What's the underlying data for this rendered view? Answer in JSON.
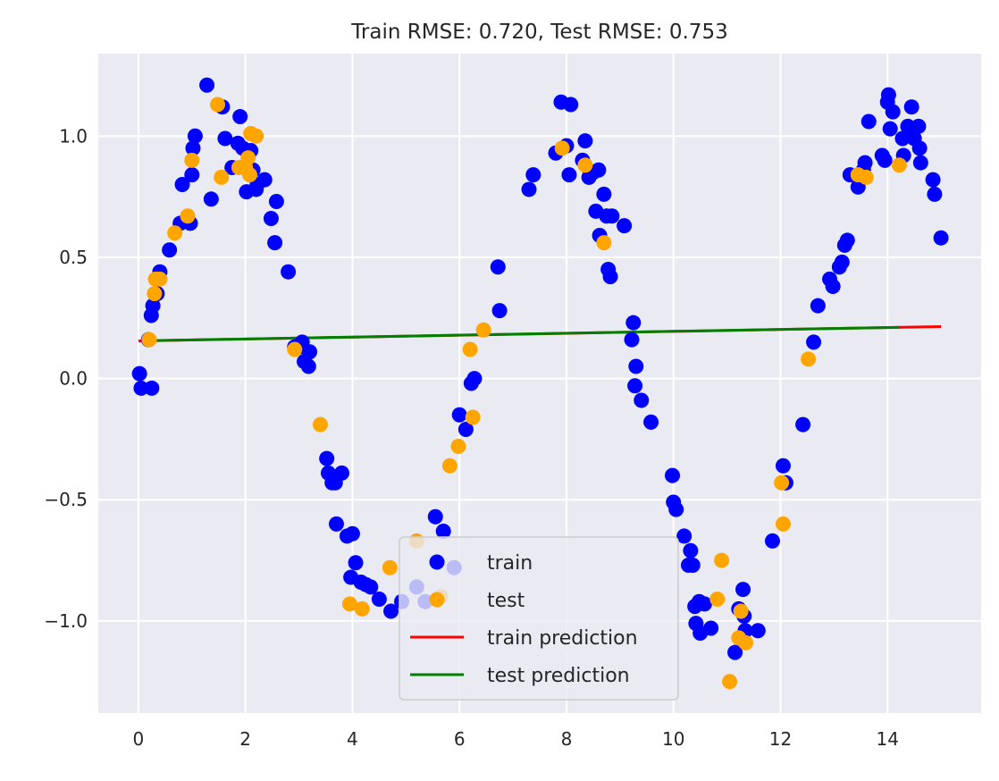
{
  "chart_data": {
    "type": "scatter",
    "title": "Train RMSE: 0.720, Test RMSE: 0.753",
    "xlabel": "",
    "ylabel": "",
    "xlim": [
      -0.75,
      15.75
    ],
    "ylim": [
      -1.38,
      1.34
    ],
    "xticks": [
      0,
      2,
      4,
      6,
      8,
      10,
      12,
      14
    ],
    "xtick_labels": [
      "0",
      "2",
      "4",
      "6",
      "8",
      "10",
      "12",
      "14"
    ],
    "yticks": [
      -1.0,
      -0.5,
      0.0,
      0.5,
      1.0
    ],
    "ytick_labels": [
      "−1.0",
      "−0.5",
      "0.0",
      "0.5",
      "1.0"
    ],
    "grid": true,
    "background": "#eaeaf2",
    "legend_position": "lower center",
    "series": [
      {
        "name": "train",
        "kind": "scatter",
        "color": "#0000ff",
        "points": [
          [
            0.02,
            0.02
          ],
          [
            0.05,
            -0.04
          ],
          [
            0.19,
            0.16
          ],
          [
            0.24,
            0.26
          ],
          [
            0.27,
            0.3
          ],
          [
            0.25,
            -0.04
          ],
          [
            0.35,
            0.35
          ],
          [
            0.4,
            0.44
          ],
          [
            0.58,
            0.53
          ],
          [
            0.78,
            0.64
          ],
          [
            0.82,
            0.8
          ],
          [
            0.97,
            0.64
          ],
          [
            1.0,
            0.84
          ],
          [
            1.02,
            0.95
          ],
          [
            1.06,
            1.0
          ],
          [
            1.28,
            1.21
          ],
          [
            1.36,
            0.74
          ],
          [
            1.57,
            1.12
          ],
          [
            1.62,
            0.99
          ],
          [
            1.75,
            0.87
          ],
          [
            1.86,
            0.97
          ],
          [
            1.9,
            1.08
          ],
          [
            1.95,
            0.95
          ],
          [
            2.02,
            0.77
          ],
          [
            2.1,
            0.94
          ],
          [
            2.14,
            0.86
          ],
          [
            2.2,
            0.78
          ],
          [
            2.22,
            0.8
          ],
          [
            2.36,
            0.82
          ],
          [
            2.48,
            0.66
          ],
          [
            2.55,
            0.56
          ],
          [
            2.58,
            0.73
          ],
          [
            2.8,
            0.44
          ],
          [
            2.92,
            0.13
          ],
          [
            3.0,
            0.13
          ],
          [
            3.06,
            0.15
          ],
          [
            3.1,
            0.07
          ],
          [
            3.18,
            0.05
          ],
          [
            3.2,
            0.11
          ],
          [
            3.52,
            -0.33
          ],
          [
            3.55,
            -0.39
          ],
          [
            3.62,
            -0.43
          ],
          [
            3.68,
            -0.43
          ],
          [
            3.7,
            -0.6
          ],
          [
            3.8,
            -0.39
          ],
          [
            3.9,
            -0.65
          ],
          [
            3.97,
            -0.82
          ],
          [
            4.0,
            -0.64
          ],
          [
            4.06,
            -0.76
          ],
          [
            4.16,
            -0.84
          ],
          [
            4.25,
            -0.85
          ],
          [
            4.34,
            -0.86
          ],
          [
            4.5,
            -0.91
          ],
          [
            4.72,
            -0.96
          ],
          [
            4.92,
            -0.92
          ],
          [
            5.2,
            -0.86
          ],
          [
            5.36,
            -0.92
          ],
          [
            5.55,
            -0.57
          ],
          [
            5.7,
            -0.63
          ],
          [
            5.9,
            -0.78
          ],
          [
            6.0,
            -0.15
          ],
          [
            6.12,
            -0.21
          ],
          [
            6.22,
            -0.02
          ],
          [
            6.28,
            0.0
          ],
          [
            6.72,
            0.46
          ],
          [
            6.75,
            0.28
          ],
          [
            7.3,
            0.78
          ],
          [
            7.38,
            0.84
          ],
          [
            7.8,
            0.93
          ],
          [
            7.9,
            1.14
          ],
          [
            8.0,
            0.96
          ],
          [
            8.05,
            0.84
          ],
          [
            8.08,
            1.13
          ],
          [
            8.3,
            0.9
          ],
          [
            8.35,
            0.98
          ],
          [
            8.42,
            0.83
          ],
          [
            8.5,
            0.85
          ],
          [
            8.55,
            0.69
          ],
          [
            8.6,
            0.86
          ],
          [
            8.62,
            0.59
          ],
          [
            8.7,
            0.76
          ],
          [
            8.75,
            0.67
          ],
          [
            8.78,
            0.45
          ],
          [
            8.82,
            0.42
          ],
          [
            8.85,
            0.67
          ],
          [
            9.08,
            0.63
          ],
          [
            9.22,
            0.16
          ],
          [
            9.25,
            0.23
          ],
          [
            9.3,
            0.05
          ],
          [
            9.28,
            -0.03
          ],
          [
            9.4,
            -0.09
          ],
          [
            9.58,
            -0.18
          ],
          [
            9.98,
            -0.4
          ],
          [
            10.0,
            -0.51
          ],
          [
            10.05,
            -0.54
          ],
          [
            10.2,
            -0.65
          ],
          [
            10.28,
            -0.77
          ],
          [
            10.32,
            -0.71
          ],
          [
            10.36,
            -0.77
          ],
          [
            10.4,
            -0.94
          ],
          [
            10.42,
            -1.01
          ],
          [
            10.48,
            -0.92
          ],
          [
            10.5,
            -1.05
          ],
          [
            10.58,
            -0.93
          ],
          [
            10.7,
            -1.03
          ],
          [
            11.15,
            -1.13
          ],
          [
            11.22,
            -0.95
          ],
          [
            11.3,
            -0.87
          ],
          [
            11.32,
            -0.98
          ],
          [
            11.34,
            -1.04
          ],
          [
            11.58,
            -1.04
          ],
          [
            11.85,
            -0.67
          ],
          [
            12.05,
            -0.36
          ],
          [
            12.1,
            -0.43
          ],
          [
            12.42,
            -0.19
          ],
          [
            12.62,
            0.15
          ],
          [
            12.7,
            0.3
          ],
          [
            12.92,
            0.41
          ],
          [
            12.98,
            0.38
          ],
          [
            13.1,
            0.46
          ],
          [
            13.15,
            0.48
          ],
          [
            13.2,
            0.55
          ],
          [
            13.25,
            0.57
          ],
          [
            13.3,
            0.84
          ],
          [
            13.45,
            0.79
          ],
          [
            13.55,
            0.86
          ],
          [
            13.58,
            0.89
          ],
          [
            13.65,
            1.06
          ],
          [
            13.9,
            0.92
          ],
          [
            13.95,
            0.9
          ],
          [
            14.0,
            1.14
          ],
          [
            14.02,
            1.17
          ],
          [
            14.05,
            1.03
          ],
          [
            14.1,
            1.1
          ],
          [
            14.28,
            0.99
          ],
          [
            14.3,
            0.92
          ],
          [
            14.38,
            1.04
          ],
          [
            14.45,
            1.12
          ],
          [
            14.5,
            0.99
          ],
          [
            14.58,
            1.04
          ],
          [
            14.6,
            0.95
          ],
          [
            14.62,
            0.89
          ],
          [
            14.85,
            0.82
          ],
          [
            14.88,
            0.76
          ],
          [
            15.0,
            0.58
          ]
        ]
      },
      {
        "name": "test",
        "kind": "scatter",
        "color": "#ffa500",
        "points": [
          [
            0.2,
            0.16
          ],
          [
            0.3,
            0.35
          ],
          [
            0.32,
            0.41
          ],
          [
            0.4,
            0.41
          ],
          [
            0.68,
            0.6
          ],
          [
            0.92,
            0.67
          ],
          [
            1.0,
            0.9
          ],
          [
            1.48,
            1.13
          ],
          [
            1.55,
            0.83
          ],
          [
            1.88,
            0.87
          ],
          [
            2.0,
            0.87
          ],
          [
            2.05,
            0.91
          ],
          [
            2.08,
            0.84
          ],
          [
            2.1,
            1.01
          ],
          [
            2.2,
            1.0
          ],
          [
            2.92,
            0.12
          ],
          [
            3.4,
            -0.19
          ],
          [
            3.95,
            -0.93
          ],
          [
            4.18,
            -0.95
          ],
          [
            4.7,
            -0.78
          ],
          [
            5.2,
            -0.67
          ],
          [
            5.65,
            -0.9
          ],
          [
            5.82,
            -0.36
          ],
          [
            5.98,
            -0.28
          ],
          [
            6.2,
            0.12
          ],
          [
            6.25,
            -0.16
          ],
          [
            6.45,
            0.2
          ],
          [
            7.92,
            0.95
          ],
          [
            8.35,
            0.88
          ],
          [
            8.7,
            0.56
          ],
          [
            10.82,
            -0.91
          ],
          [
            10.9,
            -0.75
          ],
          [
            11.05,
            -1.25
          ],
          [
            11.22,
            -1.07
          ],
          [
            11.26,
            -0.96
          ],
          [
            11.35,
            -1.09
          ],
          [
            12.02,
            -0.43
          ],
          [
            12.05,
            -0.6
          ],
          [
            12.52,
            0.08
          ],
          [
            13.45,
            0.84
          ],
          [
            13.6,
            0.83
          ],
          [
            14.22,
            0.88
          ]
        ]
      },
      {
        "name": "train prediction",
        "kind": "line",
        "color": "#ff0000",
        "points": [
          [
            0.0,
            0.155
          ],
          [
            15.0,
            0.214
          ]
        ]
      },
      {
        "name": "test prediction",
        "kind": "line",
        "color": "#008000",
        "points": [
          [
            0.2,
            0.156
          ],
          [
            14.22,
            0.211
          ]
        ]
      }
    ]
  }
}
